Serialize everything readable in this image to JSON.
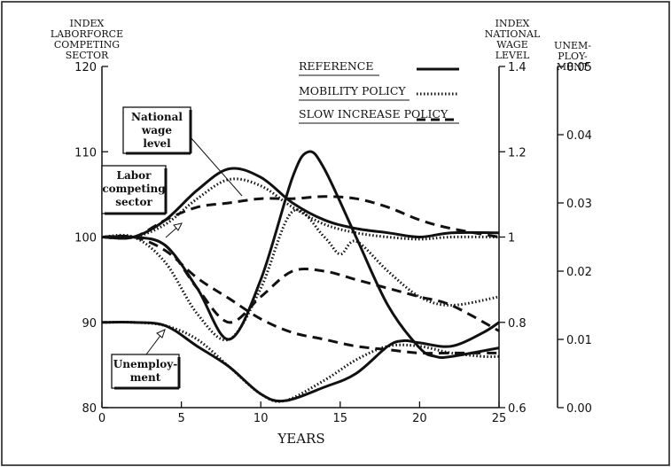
{
  "chart_data": {
    "type": "line",
    "xlabel": "YEARS",
    "x_ticks": [
      "0",
      "5",
      "10",
      "15",
      "20",
      "25"
    ],
    "xlim": [
      0,
      25
    ],
    "axes": {
      "left": {
        "title": [
          "INDEX",
          "LABORFORCE",
          "COMPETING",
          "SECTOR"
        ],
        "ylim": [
          80,
          120
        ],
        "ticks": [
          "80",
          "90",
          "100",
          "110",
          "120"
        ]
      },
      "right1": {
        "title": [
          "INDEX",
          "NATIONAL",
          "WAGE",
          "LEVEL"
        ],
        "ylim": [
          0.6,
          1.4
        ],
        "ticks": [
          "0.6",
          "0.8",
          "1",
          "1.2",
          "1.4"
        ]
      },
      "right2": {
        "title": [
          "UNEM-",
          "PLOY-",
          "MENT"
        ],
        "ylim": [
          0.0,
          0.05
        ],
        "ticks": [
          "0.00",
          "0.01",
          "0.02",
          "0.03",
          "0.04",
          "0.05"
        ]
      }
    },
    "legend": [
      {
        "label": "REFERENCE",
        "style": "solid"
      },
      {
        "label": "MOBILITY POLICY",
        "style": "dotted"
      },
      {
        "label": "SLOW INCREASE POLICY",
        "style": "dashed"
      }
    ],
    "annotations": [
      {
        "lines": [
          "National",
          "wage",
          "level"
        ]
      },
      {
        "lines": [
          "Labor",
          "competing",
          "sector"
        ]
      },
      {
        "lines": [
          "Unemploy-",
          "ment"
        ]
      }
    ],
    "series": [
      {
        "group": "National wage level",
        "style": "solid",
        "axis": "right1",
        "x": [
          0,
          2,
          4,
          6,
          8,
          10,
          12,
          14,
          16,
          18,
          20,
          22,
          25
        ],
        "y": [
          1.0,
          1.0,
          1.04,
          1.11,
          1.16,
          1.14,
          1.08,
          1.04,
          1.02,
          1.01,
          1.0,
          1.01,
          1.01
        ]
      },
      {
        "group": "National wage level",
        "style": "dotted",
        "axis": "right1",
        "x": [
          0,
          2,
          4,
          6,
          8,
          10,
          12,
          14,
          16,
          18,
          20,
          22,
          25
        ],
        "y": [
          1.0,
          1.0,
          1.03,
          1.09,
          1.135,
          1.12,
          1.07,
          1.03,
          1.01,
          1.0,
          0.995,
          1.0,
          1.0
        ]
      },
      {
        "group": "National wage level",
        "style": "dashed",
        "axis": "right1",
        "x": [
          0,
          2,
          4,
          6,
          8,
          10,
          12,
          14,
          16,
          18,
          20,
          22,
          25
        ],
        "y": [
          1.0,
          1.0,
          1.04,
          1.07,
          1.08,
          1.09,
          1.09,
          1.095,
          1.09,
          1.07,
          1.04,
          1.02,
          1.0
        ]
      },
      {
        "group": "Labor competing sector",
        "style": "solid",
        "axis": "left",
        "x": [
          0,
          2,
          4,
          6,
          8,
          10,
          12,
          13,
          14,
          16,
          18,
          20,
          21,
          22,
          25
        ],
        "y": [
          100,
          100,
          99,
          94,
          88,
          95,
          107,
          110,
          108,
          100,
          92,
          87,
          86,
          86,
          87
        ]
      },
      {
        "group": "Labor competing sector",
        "style": "dotted",
        "axis": "left",
        "x": [
          0,
          2,
          4,
          6,
          8,
          10,
          12,
          14,
          15,
          16,
          18,
          20,
          22,
          25
        ],
        "y": [
          100,
          100,
          97,
          91,
          88,
          94,
          103,
          100,
          98,
          99.5,
          96,
          93,
          92,
          93
        ]
      },
      {
        "group": "Labor competing sector",
        "style": "dashed",
        "axis": "left",
        "x": [
          0,
          2,
          4,
          6,
          8,
          10,
          12,
          14,
          16,
          18,
          20,
          22,
          25
        ],
        "y": [
          100,
          100,
          99,
          94,
          90,
          93,
          96,
          96,
          95,
          94,
          93,
          92,
          89
        ]
      },
      {
        "group": "Unemployment",
        "style": "solid",
        "axis": "right2",
        "x": [
          0,
          2,
          4,
          6,
          8,
          10,
          11.5,
          14,
          16,
          18,
          19,
          20,
          22,
          24,
          25
        ],
        "y": [
          0.0125,
          0.0125,
          0.012,
          0.009,
          0.006,
          0.002,
          0.001,
          0.003,
          0.005,
          0.009,
          0.0098,
          0.0095,
          0.009,
          0.011,
          0.0125
        ]
      },
      {
        "group": "Unemployment",
        "style": "dotted",
        "axis": "right2",
        "x": [
          0,
          2,
          4,
          6,
          8,
          10,
          11.5,
          14,
          16,
          18,
          20,
          22,
          24,
          25
        ],
        "y": [
          0.0125,
          0.0125,
          0.012,
          0.01,
          0.006,
          0.002,
          0.001,
          0.004,
          0.007,
          0.009,
          0.009,
          0.008,
          0.0075,
          0.0075
        ]
      },
      {
        "group": "Unemployment",
        "style": "dashed",
        "axis": "right2",
        "x": [
          0,
          2,
          4,
          6,
          8,
          10,
          12,
          14,
          16,
          18,
          20,
          22,
          25
        ],
        "y": [
          0.025,
          0.025,
          0.023,
          0.019,
          0.016,
          0.013,
          0.011,
          0.01,
          0.009,
          0.0085,
          0.008,
          0.008,
          0.008
        ]
      }
    ]
  }
}
